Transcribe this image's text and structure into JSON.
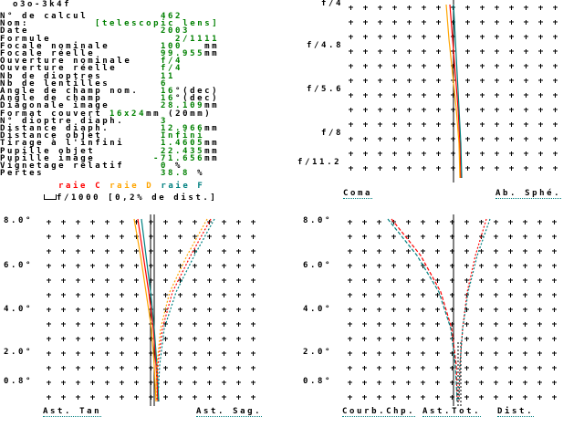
{
  "title": "o3o-3k4f",
  "rows": [
    {
      "label": "N° de calcul",
      "value": "462",
      "unit": ""
    },
    {
      "label": "Nom:",
      "value": "[telescopic lens]",
      "unit": ""
    },
    {
      "label": "Date",
      "value": "2003",
      "unit": ""
    },
    {
      "label": "Formule",
      "value": "  2/1111",
      "unit": ""
    },
    {
      "label": "Focale nominale",
      "value": "100",
      "unit": "   mm"
    },
    {
      "label": "Focale réelle",
      "value": "99.955",
      "unit": "mm"
    },
    {
      "label": "Ouverture nominale",
      "value": "f/4",
      "unit": ""
    },
    {
      "label": "Ouverture réelle",
      "value": "f/4",
      "unit": ""
    },
    {
      "label": "Nb de dioptres",
      "value": "11",
      "unit": ""
    },
    {
      "label": "Nb de lentilles",
      "value": "6",
      "unit": ""
    },
    {
      "label": "Angle de champ nom.",
      "value": "16",
      "unit": "°(dec)"
    },
    {
      "label": "Angle de champ",
      "value": "16",
      "unit": "°(dec)"
    },
    {
      "label": "Diagonale image",
      "value": "28.109",
      "unit": "mm"
    },
    {
      "label": "Format couvert",
      "value": "16x24",
      "unit": "mm (20mm)"
    },
    {
      "label": "N° dioptre diaph.",
      "value": "3",
      "unit": ""
    },
    {
      "label": "Distance diaph.",
      "value": "12.966",
      "unit": "mm"
    },
    {
      "label": "Distance objet",
      "value": "Infini",
      "unit": ""
    },
    {
      "label": "Tirage à l'infini",
      "value": "1.4605",
      "unit": "mm"
    },
    {
      "label": "Pupille objet",
      "value": "22.435",
      "unit": "mm"
    },
    {
      "label": "Pupille image",
      "value": "-71.656",
      "unit": "mm"
    },
    {
      "label": "Vignetage relatif",
      "value": "0",
      "unit": " %"
    },
    {
      "label": "Pertes",
      "value": "38.8",
      "unit": " %"
    }
  ],
  "legend": {
    "c": "raie C",
    "d": "raie D",
    "f": "raie F",
    "scale": "f/1000 [0,2% de dist.]"
  },
  "colors": {
    "c": "#ff0000",
    "d": "#ffa500",
    "f": "#008080",
    "value": "#008000"
  },
  "chart_data": [
    {
      "type": "line",
      "name": "spherical-coma",
      "ylabels": [
        "f/4",
        "f/4.8",
        "f/5.6",
        "f/8",
        "f/11.2"
      ],
      "xlabels": [
        "Coma",
        "Ab. Sphé."
      ],
      "series": [
        {
          "name": "raie C",
          "values": [
            -8,
            -5,
            -2,
            1,
            3,
            4
          ]
        },
        {
          "name": "raie D",
          "values": [
            -12,
            -9,
            -5,
            -1,
            2,
            3
          ]
        },
        {
          "name": "raie F",
          "values": [
            -4,
            -2,
            0,
            2,
            4,
            5
          ]
        }
      ]
    },
    {
      "type": "line",
      "name": "astigmatism",
      "ylabels": [
        "8.0°",
        "6.0°",
        "4.0°",
        "2.0°",
        "0.8°"
      ],
      "xlabels": [
        "Ast. Tan",
        "Ast. Sag."
      ],
      "series": [
        {
          "name": "raie C tan",
          "values": [
            -18,
            -12,
            -6,
            -1,
            2,
            4
          ]
        },
        {
          "name": "raie D tan",
          "values": [
            -22,
            -15,
            -9,
            -3,
            0,
            2
          ]
        },
        {
          "name": "raie F tan",
          "values": [
            -14,
            -9,
            -4,
            0,
            3,
            5
          ]
        },
        {
          "name": "raie C sag",
          "values": [
            62,
            40,
            20,
            9,
            4,
            3
          ]
        },
        {
          "name": "raie D sag",
          "values": [
            58,
            36,
            17,
            7,
            3,
            2
          ]
        },
        {
          "name": "raie F sag",
          "values": [
            66,
            44,
            24,
            11,
            6,
            4
          ]
        }
      ]
    },
    {
      "type": "line",
      "name": "field-curvature",
      "ylabels": [
        "8.0°",
        "6.0°",
        "4.0°",
        "2.0°",
        "0.8°"
      ],
      "xlabels": [
        "Courb.Chp.",
        "Ast.Tot.",
        "Dist."
      ],
      "series": [
        {
          "name": "raie C tan",
          "values": [
            -72,
            -40,
            -18,
            -6,
            -1,
            0
          ]
        },
        {
          "name": "raie F tan",
          "values": [
            -76,
            -44,
            -20,
            -7,
            -2,
            0
          ]
        },
        {
          "name": "raie C sag",
          "values": [
            32,
            20,
            11,
            6,
            3,
            2
          ]
        },
        {
          "name": "raie F sag",
          "values": [
            36,
            22,
            12,
            6,
            3,
            2
          ]
        }
      ]
    }
  ]
}
